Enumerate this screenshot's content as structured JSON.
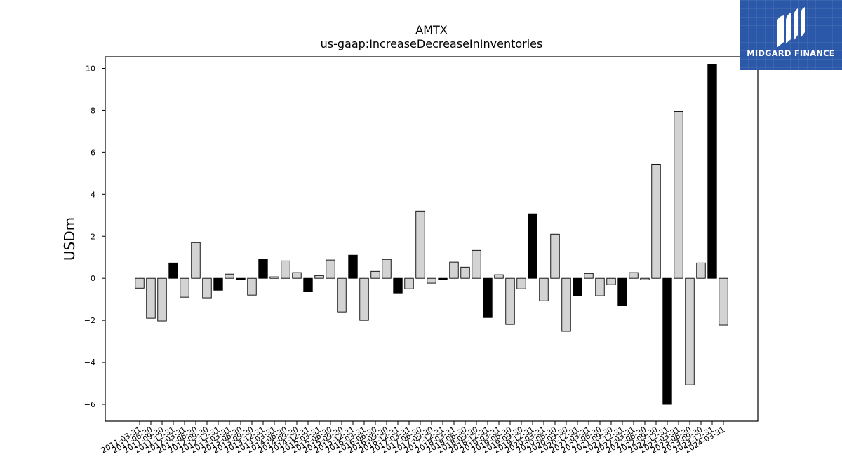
{
  "chart_data": {
    "type": "bar",
    "title": "AMTX",
    "subtitle": "us-gaap:IncreaseDecreaseInInventories",
    "xlabel": "",
    "ylabel": "USDm",
    "ylim": [
      -6.8,
      10.55
    ],
    "yticks": [
      -6,
      -4,
      -2,
      0,
      2,
      4,
      6,
      8,
      10
    ],
    "grid": false,
    "categories": [
      "2011-03-31",
      "2011-06-30",
      "2011-09-30",
      "2011-12-31",
      "2012-03-31",
      "2012-06-30",
      "2012-09-30",
      "2012-12-31",
      "2013-03-31",
      "2013-06-30",
      "2013-09-30",
      "2013-12-31",
      "2014-03-31",
      "2014-06-30",
      "2014-09-30",
      "2014-12-31",
      "2015-03-31",
      "2015-06-30",
      "2015-09-30",
      "2015-12-31",
      "2016-03-31",
      "2016-06-30",
      "2016-09-30",
      "2016-12-31",
      "2017-03-31",
      "2017-06-30",
      "2017-09-30",
      "2017-12-31",
      "2018-03-31",
      "2018-06-30",
      "2018-09-30",
      "2018-12-31",
      "2019-03-31",
      "2019-06-30",
      "2019-09-30",
      "2019-12-31",
      "2020-03-31",
      "2020-06-30",
      "2020-09-30",
      "2020-12-31",
      "2021-03-31",
      "2021-06-30",
      "2021-09-30",
      "2021-12-31",
      "2022-03-31",
      "2022-06-30",
      "2022-09-30",
      "2022-12-31",
      "2023-03-31",
      "2023-06-30",
      "2023-09-30",
      "2023-12-31",
      "2024-03-31"
    ],
    "values": [
      -0.47,
      -1.9,
      -2.03,
      0.73,
      -0.9,
      1.7,
      -0.93,
      -0.57,
      0.2,
      -0.05,
      -0.8,
      0.9,
      0.07,
      0.83,
      0.27,
      -0.63,
      0.13,
      0.87,
      -1.6,
      1.1,
      -2.0,
      0.33,
      0.9,
      -0.7,
      -0.5,
      3.2,
      -0.23,
      -0.07,
      0.77,
      0.53,
      1.33,
      -1.87,
      0.17,
      -2.2,
      -0.5,
      3.07,
      -1.07,
      2.1,
      -2.53,
      -0.83,
      0.23,
      -0.83,
      -0.3,
      -1.3,
      0.27,
      -0.07,
      5.43,
      -6.0,
      7.93,
      -5.07,
      0.73,
      10.2,
      -2.23
    ],
    "fills": [
      "#d3d3d3",
      "#d3d3d3",
      "#d3d3d3",
      "#000000",
      "#d3d3d3",
      "#d3d3d3",
      "#d3d3d3",
      "#000000",
      "#d3d3d3",
      "#000000",
      "#d3d3d3",
      "#000000",
      "#d3d3d3",
      "#d3d3d3",
      "#d3d3d3",
      "#000000",
      "#d3d3d3",
      "#d3d3d3",
      "#d3d3d3",
      "#000000",
      "#d3d3d3",
      "#d3d3d3",
      "#d3d3d3",
      "#000000",
      "#d3d3d3",
      "#d3d3d3",
      "#d3d3d3",
      "#000000",
      "#d3d3d3",
      "#d3d3d3",
      "#d3d3d3",
      "#000000",
      "#d3d3d3",
      "#d3d3d3",
      "#d3d3d3",
      "#000000",
      "#d3d3d3",
      "#d3d3d3",
      "#d3d3d3",
      "#000000",
      "#d3d3d3",
      "#d3d3d3",
      "#d3d3d3",
      "#000000",
      "#d3d3d3",
      "#d3d3d3",
      "#d3d3d3",
      "#000000",
      "#d3d3d3",
      "#d3d3d3",
      "#d3d3d3",
      "#000000",
      "#d3d3d3"
    ],
    "edge_color": "#000000"
  },
  "logo": {
    "text": "MIDGARD FINANCE",
    "background": "#2b58a8"
  }
}
